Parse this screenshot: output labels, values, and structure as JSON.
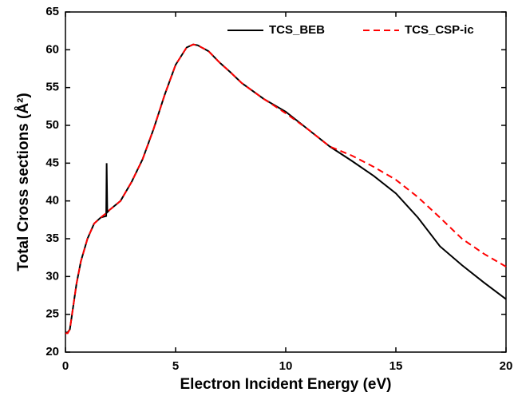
{
  "chart_data": {
    "type": "line",
    "xlabel": "Electron Incident Energy (eV)",
    "ylabel": "Total Cross sections (Å²)",
    "xlim": [
      0,
      20
    ],
    "xticks": [
      0,
      5,
      10,
      15,
      20
    ],
    "ylim": [
      20,
      65
    ],
    "yticks": [
      20,
      25,
      30,
      35,
      40,
      45,
      50,
      55,
      60,
      65
    ],
    "legend": "upper right",
    "series": [
      {
        "name": "TCS_BEB",
        "color": "#000000",
        "dash": false,
        "x": [
          0,
          0.1,
          0.2,
          0.3,
          0.5,
          0.7,
          1.0,
          1.3,
          1.6,
          1.85,
          1.87,
          1.9,
          2.0,
          2.5,
          3.0,
          3.5,
          4.0,
          4.5,
          5.0,
          5.5,
          5.8,
          6.0,
          6.5,
          7.0,
          7.5,
          8.0,
          9.0,
          10.0,
          11.0,
          12.0,
          13.0,
          14.0,
          15.0,
          16.0,
          17.0,
          18.0,
          19.0,
          20.0
        ],
        "values": [
          22.6,
          22.6,
          23,
          25,
          29,
          32,
          35,
          37,
          37.8,
          38,
          45,
          38.5,
          38.8,
          40,
          42.5,
          45.5,
          49.5,
          54,
          58,
          60.3,
          60.7,
          60.6,
          59.8,
          58.3,
          57,
          55.6,
          53.5,
          51.8,
          49.5,
          47.2,
          45.3,
          43.3,
          41,
          37.8,
          34,
          31.5,
          29.2,
          27
        ]
      },
      {
        "name": "TCS_CSP-ic",
        "color": "#ff0000",
        "dash": true,
        "x": [
          0,
          0.1,
          0.2,
          0.3,
          0.5,
          0.7,
          1.0,
          1.3,
          1.6,
          1.9,
          2.0,
          2.5,
          3.0,
          3.5,
          4.0,
          4.5,
          5.0,
          5.5,
          5.8,
          6.0,
          6.5,
          7.0,
          7.5,
          8.0,
          9.0,
          10.0,
          11.0,
          12.0,
          13.0,
          14.0,
          15.0,
          16.0,
          17.0,
          18.0,
          19.0,
          20.0
        ],
        "values": [
          22.5,
          22.5,
          23,
          25,
          29,
          32,
          35,
          37,
          37.8,
          38.5,
          38.8,
          40,
          42.5,
          45.5,
          49.5,
          54,
          58,
          60.3,
          60.7,
          60.6,
          59.8,
          58.3,
          57,
          55.6,
          53.5,
          51.6,
          49.5,
          47.2,
          46,
          44.5,
          42.8,
          40.5,
          37.8,
          35,
          33,
          31.3
        ]
      }
    ]
  }
}
